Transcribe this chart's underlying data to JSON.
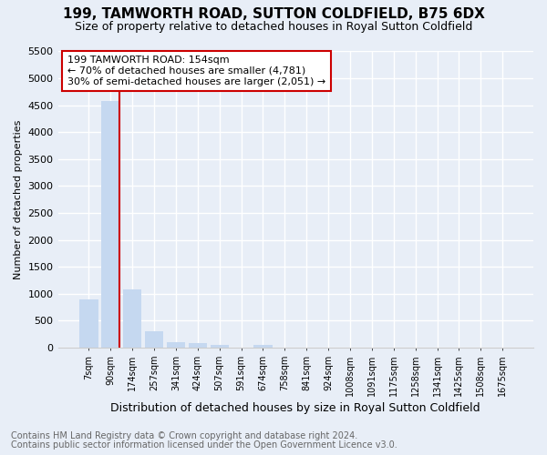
{
  "title": "199, TAMWORTH ROAD, SUTTON COLDFIELD, B75 6DX",
  "subtitle": "Size of property relative to detached houses in Royal Sutton Coldfield",
  "xlabel": "Distribution of detached houses by size in Royal Sutton Coldfield",
  "ylabel": "Number of detached properties",
  "footnote1": "Contains HM Land Registry data © Crown copyright and database right 2024.",
  "footnote2": "Contains public sector information licensed under the Open Government Licence v3.0.",
  "annotation_title": "199 TAMWORTH ROAD: 154sqm",
  "annotation_line1": "← 70% of detached houses are smaller (4,781)",
  "annotation_line2": "30% of semi-detached houses are larger (2,051) →",
  "categories": [
    "7sqm",
    "90sqm",
    "174sqm",
    "257sqm",
    "341sqm",
    "424sqm",
    "507sqm",
    "591sqm",
    "674sqm",
    "758sqm",
    "841sqm",
    "924sqm",
    "1008sqm",
    "1091sqm",
    "1175sqm",
    "1258sqm",
    "1341sqm",
    "1425sqm",
    "1508sqm",
    "1675sqm"
  ],
  "values": [
    900,
    4580,
    1080,
    300,
    95,
    90,
    50,
    0,
    50,
    0,
    0,
    0,
    0,
    0,
    0,
    0,
    0,
    0,
    0,
    0
  ],
  "bar_color": "#c5d8f0",
  "vline_color": "#cc0000",
  "annotation_box_edgecolor": "#cc0000",
  "annotation_box_facecolor": "#ffffff",
  "background_color": "#e8eef7",
  "grid_color": "#ffffff",
  "ylim": [
    0,
    5500
  ],
  "yticks": [
    0,
    500,
    1000,
    1500,
    2000,
    2500,
    3000,
    3500,
    4000,
    4500,
    5000,
    5500
  ],
  "vline_bar_index": 1,
  "title_fontsize": 11,
  "subtitle_fontsize": 9,
  "footnote_fontsize": 7,
  "ylabel_fontsize": 8,
  "xlabel_fontsize": 9
}
